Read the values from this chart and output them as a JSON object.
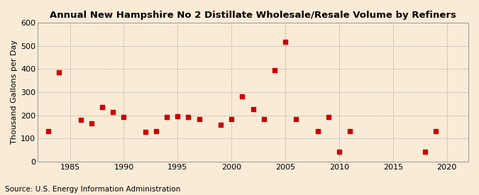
{
  "title": "Annual New Hampshire No 2 Distillate Wholesale/Resale Volume by Refiners",
  "ylabel": "Thousand Gallons per Day",
  "source": "Source: U.S. Energy Information Administration",
  "background_color": "#faebd7",
  "plot_background_color": "#faebd7",
  "marker_color": "#cc0000",
  "years": [
    1983,
    1984,
    1986,
    1987,
    1988,
    1989,
    1990,
    1992,
    1993,
    1994,
    1995,
    1996,
    1997,
    1999,
    2000,
    2001,
    2002,
    2003,
    2004,
    2005,
    2006,
    2008,
    2009,
    2010,
    2011,
    2018,
    2019
  ],
  "values": [
    130,
    385,
    180,
    165,
    235,
    213,
    193,
    128,
    130,
    193,
    196,
    192,
    185,
    160,
    185,
    283,
    225,
    185,
    395,
    518,
    185,
    130,
    193,
    44,
    130,
    44,
    130
  ],
  "xlim": [
    1982,
    2022
  ],
  "ylim": [
    0,
    600
  ],
  "yticks": [
    0,
    100,
    200,
    300,
    400,
    500,
    600
  ],
  "xticks": [
    1985,
    1990,
    1995,
    2000,
    2005,
    2010,
    2015,
    2020
  ],
  "title_fontsize": 9.5,
  "label_fontsize": 8,
  "tick_fontsize": 8,
  "source_fontsize": 7.5,
  "marker_size": 16
}
